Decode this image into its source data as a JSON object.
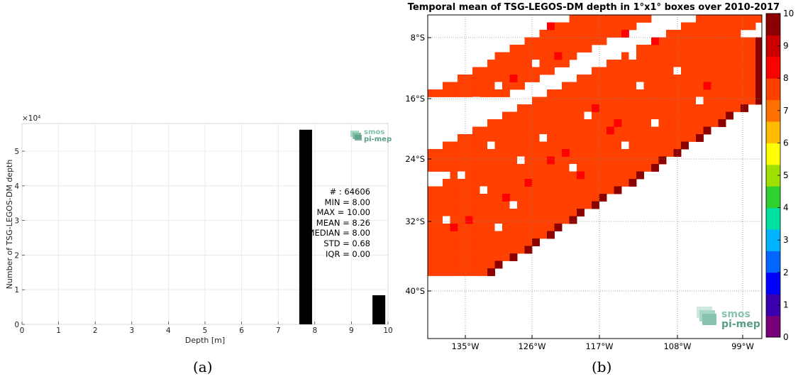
{
  "panel_a": {
    "caption": "(a)",
    "stats": {
      "count": "# : 64606",
      "min": "MIN = 8.00",
      "max": "MAX =  10.00",
      "mean": "MEAN = 8.26",
      "median": "MEDIAN = 8.00",
      "std": "STD = 0.68",
      "iqr": "IQR = 0.00"
    },
    "logo": {
      "line1": "smos",
      "line2": "pi-mep"
    }
  },
  "panel_b": {
    "caption": "(b)",
    "logo": {
      "line1": "smos",
      "line2": "pi-mep"
    }
  },
  "chart_data": [
    {
      "type": "bar",
      "title": "",
      "xlabel": "Depth [m]",
      "ylabel": "Number of TSG-LEGOS-DM depth",
      "y_exponent_label": "×10⁴",
      "xlim": [
        0,
        10
      ],
      "ylim": [
        0,
        58000
      ],
      "x_ticks": [
        "0",
        "1",
        "2",
        "3",
        "4",
        "5",
        "6",
        "7",
        "8",
        "9",
        "10"
      ],
      "y_ticks": [
        "0",
        "1",
        "2",
        "3",
        "4",
        "5"
      ],
      "bar_width": 0.35,
      "x": [
        7.75,
        9.75
      ],
      "values": [
        56200,
        8400
      ],
      "grid": true,
      "color": "#000000"
    },
    {
      "type": "heatmap",
      "title": "Temporal mean of TSG-LEGOS-DM depth in 1°x1° boxes over 2010-2017",
      "x_ticks": [
        "135°W",
        "126°W",
        "117°W",
        "108°W",
        "99°W"
      ],
      "y_ticks": [
        "8°S",
        "16°S",
        "24°S",
        "32°S",
        "40°S"
      ],
      "colorbar_ticks": [
        "0",
        "1",
        "2",
        "3",
        "4",
        "5",
        "6",
        "7",
        "8",
        "9",
        "10"
      ],
      "colorbar_range": [
        0,
        10
      ],
      "colormap": [
        "#7a007a",
        "#3a00b0",
        "#0000ff",
        "#0066ff",
        "#00b4ff",
        "#00e0a0",
        "#30d030",
        "#a0e000",
        "#ffff00",
        "#ffbb00",
        "#ff7000",
        "#ff4000",
        "#ff0000",
        "#cc0000",
        "#8b0000"
      ],
      "dominant_value": 8,
      "band_colors": {
        "main": "#ff4000",
        "edge": "#8b0000",
        "mid": "#ff0000"
      },
      "grid": true,
      "grid_style": "dotted"
    }
  ]
}
